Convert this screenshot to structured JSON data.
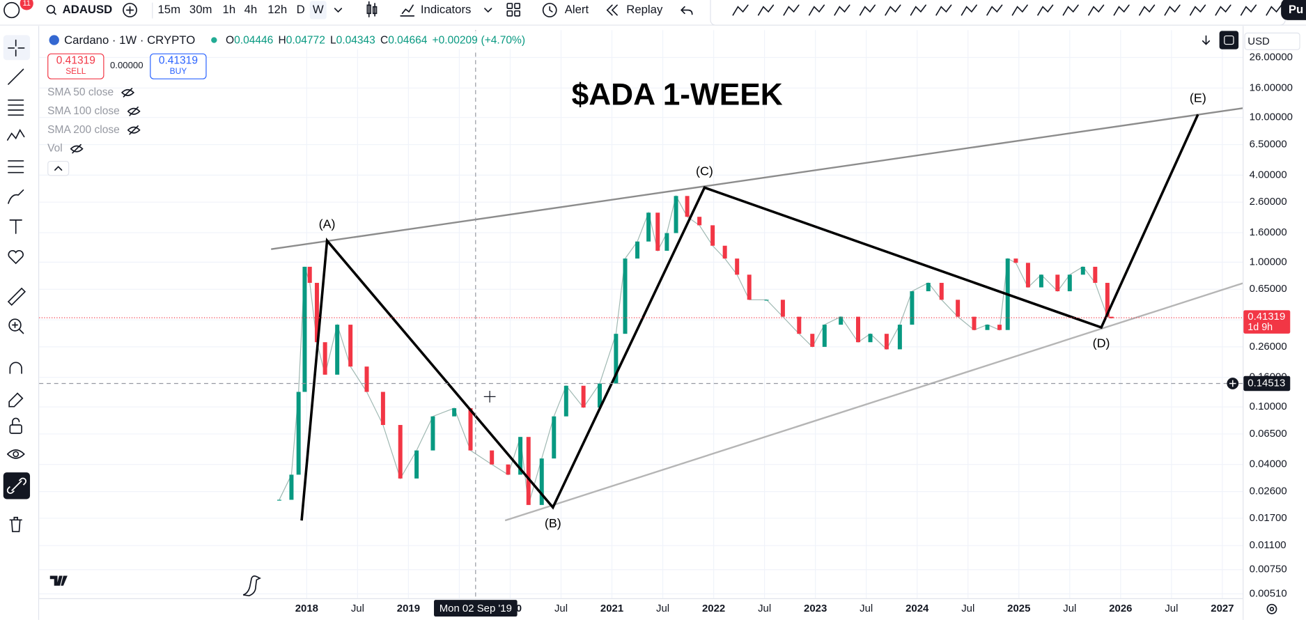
{
  "toolbar": {
    "badge": "11",
    "symbol": "ADAUSD",
    "intervals": [
      "15m",
      "30m",
      "1h",
      "4h",
      "12h",
      "D",
      "W"
    ],
    "active_interval": 6,
    "indicators": "Indicators",
    "alert": "Alert",
    "replay": "Replay",
    "publish": "Pu"
  },
  "header": {
    "name": "Cardano · 1W · CRYPTO",
    "ohlc": [
      {
        "label": "O",
        "value": 0.04446
      },
      {
        "label": "H",
        "value": 0.04772
      },
      {
        "label": "L",
        "value": 0.04343
      },
      {
        "label": "C",
        "value": 0.04664
      }
    ],
    "change": "+0.00209",
    "change_pct": "(+4.70%)"
  },
  "trade": {
    "sell_price": 0.41319,
    "sell": "SELL",
    "spread": "0.00000",
    "buy_price": 0.41319,
    "buy": "BUY"
  },
  "indicators": [
    "SMA 50 close",
    "SMA 100 close",
    "SMA 200 close",
    "Vol"
  ],
  "chart_data": {
    "type": "candlestick",
    "title": "$ADA 1-WEEK",
    "currency": "USD",
    "x": [
      2017.73,
      2017.85,
      2017.92,
      2017.98,
      2018.03,
      2018.1,
      2018.18,
      2018.3,
      2018.43,
      2018.59,
      2018.75,
      2018.92,
      2019.08,
      2019.24,
      2019.45,
      2019.61,
      2019.82,
      2019.98,
      2020.1,
      2020.18,
      2020.31,
      2020.43,
      2020.55,
      2020.72,
      2020.88,
      2021.04,
      2021.13,
      2021.25,
      2021.36,
      2021.45,
      2021.54,
      2021.63,
      2021.74,
      2021.86,
      2021.99,
      2022.11,
      2022.23,
      2022.35,
      2022.52,
      2022.68,
      2022.84,
      2022.97,
      2023.09,
      2023.25,
      2023.42,
      2023.54,
      2023.7,
      2023.83,
      2023.95,
      2024.11,
      2024.24,
      2024.4,
      2024.56,
      2024.69,
      2024.81,
      2024.89,
      2024.97,
      2025.09,
      2025.22,
      2025.38,
      2025.5,
      2025.63,
      2025.75,
      2025.87,
      2025.91
    ],
    "values": [
      0.0228,
      0.034,
      0.127,
      0.93,
      0.72,
      0.28,
      0.167,
      0.37,
      0.19,
      0.127,
      0.075,
      0.032,
      0.05,
      0.086,
      0.098,
      0.05,
      0.04,
      0.034,
      0.062,
      0.021,
      0.044,
      0.086,
      0.14,
      0.099,
      0.145,
      0.32,
      1.06,
      1.39,
      2.2,
      1.2,
      1.59,
      2.87,
      2.06,
      1.8,
      1.3,
      1.06,
      0.82,
      0.55,
      0.55,
      0.42,
      0.32,
      0.26,
      0.37,
      0.42,
      0.28,
      0.32,
      0.25,
      0.37,
      0.63,
      0.72,
      0.55,
      0.42,
      0.34,
      0.37,
      0.34,
      1.06,
      0.99,
      0.67,
      0.82,
      0.63,
      0.82,
      0.93,
      0.72,
      0.42,
      0.41
    ],
    "up_color": "#089981",
    "down_color": "#f23645",
    "xlim": [
      2015.37,
      2027.2
    ],
    "xticks": [
      2018,
      {
        "value": 2018.5,
        "label": "Jul"
      },
      2019,
      {
        "value": 2019.5,
        "label": "Jul"
      },
      2020,
      {
        "value": 2020.5,
        "label": "Jul"
      },
      2021,
      {
        "value": 2021.5,
        "label": "Jul"
      },
      2022,
      {
        "value": 2022.5,
        "label": "Jul"
      },
      2023,
      {
        "value": 2023.5,
        "label": "Jul"
      },
      2024,
      {
        "value": 2024.5,
        "label": "Jul"
      },
      2025,
      {
        "value": 2025.5,
        "label": "Jul"
      },
      2026,
      {
        "value": 2026.5,
        "label": "Jul"
      },
      2027
    ],
    "ylim": [
      0.00476,
      40.2
    ],
    "log_scale": true,
    "grid": true,
    "yticks": [
      {
        "value": 26,
        "label": "26.00000"
      },
      {
        "value": 16,
        "label": "16.00000"
      },
      {
        "value": 10,
        "label": "10.00000"
      },
      {
        "value": 6.5,
        "label": "6.50000"
      },
      {
        "value": 4,
        "label": "4.00000"
      },
      {
        "value": 2.6,
        "label": "2.60000"
      },
      {
        "value": 1.6,
        "label": "1.60000"
      },
      {
        "value": 1,
        "label": "1.00000"
      },
      {
        "value": 0.65,
        "label": "0.65000"
      },
      {
        "value": 0.4,
        "label": "0.40000"
      },
      {
        "value": 0.26,
        "label": "0.26000"
      },
      {
        "value": 0.16,
        "label": "0.16000"
      },
      {
        "value": 0.1,
        "label": "0.10000"
      },
      {
        "value": 0.065,
        "label": "0.06500"
      },
      {
        "value": 0.04,
        "label": "0.04000"
      },
      {
        "value": 0.026,
        "label": "0.02600"
      },
      {
        "value": 0.017,
        "label": "0.01700"
      },
      {
        "value": 0.011,
        "label": "0.01100"
      },
      {
        "value": 0.0075,
        "label": "0.00750"
      },
      {
        "value": 0.0051,
        "label": "0.00510"
      }
    ],
    "waves": {
      "x": [
        2017.95,
        2018.2,
        2020.42,
        2021.91,
        2025.81,
        2026.76
      ],
      "values": [
        0.0164,
        1.41,
        0.0202,
        3.28,
        0.354,
        10.5
      ],
      "labels": [
        null,
        "(A)",
        "(B)",
        "(C)",
        "(D)",
        "(E)"
      ],
      "color": "#000000"
    },
    "trendlines": [
      {
        "x": [
          2017.65,
          2027.2
        ],
        "values": [
          1.23,
          11.6
        ],
        "color": "#8c8c8c"
      },
      {
        "x": [
          2019.95,
          2027.2
        ],
        "values": [
          0.0164,
          0.715
        ],
        "color": "#b5b5b5"
      }
    ],
    "last_price": {
      "value": 0.41319,
      "countdown": "1d 9h",
      "color": "#f23645"
    },
    "crosshair": {
      "x": 2019.66,
      "x_label": "Mon 02 Sep '19",
      "value": 0.14513
    }
  }
}
